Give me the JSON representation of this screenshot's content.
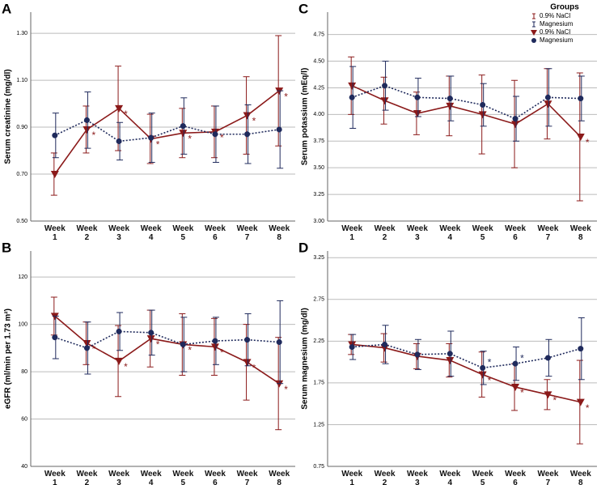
{
  "chart_data": [
    {
      "type": "line",
      "label": "A",
      "ylabel": "Serum creatinine (mg/dl)",
      "categories": [
        "Week 1",
        "Week 2",
        "Week 3",
        "Week 4",
        "Week 5",
        "Week 6",
        "Week 7",
        "Week 8"
      ],
      "ylim": [
        0.5,
        1.39
      ],
      "yticks": [
        {
          "value": 0.5,
          "label": "0.50"
        },
        {
          "value": 0.7,
          "label": "0.70"
        },
        {
          "value": 0.9,
          "label": "0.90"
        },
        {
          "value": 1.1,
          "label": "1.10"
        },
        {
          "value": 1.3,
          "label": "1.30"
        }
      ],
      "grid": true,
      "series": [
        {
          "name": "0.9% NaCl",
          "color": "#8b1a1a",
          "marker": "triangle",
          "linestyle": "solid",
          "values": [
            0.7,
            0.89,
            0.98,
            0.85,
            0.875,
            0.88,
            0.95,
            1.055
          ],
          "errors": [
            0.09,
            0.1,
            0.18,
            0.105,
            0.105,
            0.11,
            0.165,
            0.235
          ],
          "notes": [
            null,
            "*",
            "*",
            "*",
            "*",
            "*",
            "*",
            "*"
          ]
        },
        {
          "name": "Magnesium",
          "color": "#1f2a5c",
          "marker": "circle",
          "linestyle": "dotted",
          "values": [
            0.865,
            0.93,
            0.84,
            0.855,
            0.905,
            0.87,
            0.87,
            0.89
          ],
          "errors": [
            0.095,
            0.12,
            0.08,
            0.105,
            0.12,
            0.12,
            0.125,
            0.165
          ],
          "notes": [
            null,
            null,
            null,
            null,
            null,
            null,
            null,
            null
          ]
        }
      ]
    },
    {
      "type": "line",
      "label": "B",
      "ylabel": "eGFR (ml/min per 1.73 m²)",
      "categories": [
        "Week 1",
        "Week 2",
        "Week 3",
        "Week 4",
        "Week 5",
        "Week 6",
        "Week 7",
        "Week 8"
      ],
      "ylim": [
        40,
        131
      ],
      "yticks": [
        40,
        60,
        80,
        100,
        120
      ],
      "grid": true,
      "series": [
        {
          "name": "0.9% NaCl",
          "color": "#8b1a1a",
          "marker": "triangle",
          "linestyle": "solid",
          "values": [
            103.5,
            92,
            84.5,
            94,
            91.5,
            90.5,
            84,
            75
          ],
          "errors": [
            8,
            9,
            15,
            12,
            13,
            12,
            16,
            19.5
          ],
          "notes": [
            null,
            "*",
            "*",
            "*",
            "*",
            "*",
            "*",
            "*"
          ]
        },
        {
          "name": "Magnesium",
          "color": "#1f2a5c",
          "marker": "circle",
          "linestyle": "dotted",
          "values": [
            94.5,
            90,
            97,
            96.5,
            91.5,
            93,
            93.5,
            92.5
          ],
          "errors": [
            9,
            11,
            8,
            9.5,
            11.5,
            10,
            11,
            17.5
          ],
          "notes": [
            null,
            null,
            null,
            null,
            null,
            null,
            null,
            null
          ]
        }
      ]
    },
    {
      "type": "line",
      "label": "C",
      "ylabel": "Serum potassium (mEq/l)",
      "legend_title": "Groups",
      "legend": "upper right",
      "categories": [
        "Week 1",
        "Week 2",
        "Week 3",
        "Week 4",
        "Week 5",
        "Week 6",
        "Week 7",
        "Week 8"
      ],
      "ylim": [
        3.0,
        4.96
      ],
      "yticks": [
        {
          "value": 3.0,
          "label": "3.00"
        },
        {
          "value": 3.25,
          "label": "3.25"
        },
        {
          "value": 3.5,
          "label": "3.50"
        },
        {
          "value": 3.75,
          "label": "3.75"
        },
        {
          "value": 4.0,
          "label": "4.00"
        },
        {
          "value": 4.25,
          "label": "4.25"
        },
        {
          "value": 4.5,
          "label": "4.50"
        },
        {
          "value": 4.75,
          "label": "4.75"
        }
      ],
      "grid": true,
      "series": [
        {
          "name": "0.9% NaCl",
          "color": "#8b1a1a",
          "marker": "triangle",
          "linestyle": "solid",
          "values": [
            4.27,
            4.13,
            4.01,
            4.08,
            4.0,
            3.91,
            4.1,
            3.79
          ],
          "errors": [
            0.27,
            0.22,
            0.2,
            0.28,
            0.37,
            0.41,
            0.33,
            0.6
          ],
          "notes": [
            null,
            null,
            null,
            null,
            null,
            null,
            null,
            "*"
          ]
        },
        {
          "name": "Magnesium",
          "color": "#1f2a5c",
          "marker": "circle",
          "linestyle": "dotted",
          "values": [
            4.16,
            4.27,
            4.16,
            4.15,
            4.09,
            3.96,
            4.16,
            4.15
          ],
          "errors": [
            0.29,
            0.23,
            0.18,
            0.21,
            0.2,
            0.21,
            0.27,
            0.21
          ],
          "notes": [
            null,
            null,
            null,
            null,
            null,
            null,
            null,
            null
          ]
        }
      ]
    },
    {
      "type": "line",
      "label": "D",
      "ylabel": "Serum magnesium (mg/dl)",
      "categories": [
        "Week 1",
        "Week 2",
        "Week 3",
        "Week 4",
        "Week 5",
        "Week 6",
        "Week 7",
        "Week 8"
      ],
      "ylim": [
        0.75,
        3.33
      ],
      "yticks": [
        {
          "value": 0.75,
          "label": "0.75"
        },
        {
          "value": 1.25,
          "label": "1.25"
        },
        {
          "value": 1.75,
          "label": "1.75"
        },
        {
          "value": 2.25,
          "label": "2.25"
        },
        {
          "value": 2.75,
          "label": "2.75"
        },
        {
          "value": 3.25,
          "label": "3.25"
        }
      ],
      "grid": true,
      "series": [
        {
          "name": "0.9% NaCl",
          "color": "#8b1a1a",
          "marker": "triangle",
          "linestyle": "solid",
          "values": [
            2.21,
            2.17,
            2.07,
            2.02,
            1.85,
            1.7,
            1.61,
            1.52
          ],
          "errors": [
            0.12,
            0.17,
            0.15,
            0.2,
            0.27,
            0.28,
            0.18,
            0.5
          ],
          "notes": [
            null,
            null,
            null,
            null,
            "*",
            "*",
            "*",
            "*"
          ]
        },
        {
          "name": "Magnesium",
          "color": "#1f2a5c",
          "marker": "circle",
          "linestyle": "dotted",
          "values": [
            2.18,
            2.21,
            2.09,
            2.1,
            1.93,
            1.98,
            2.05,
            2.16
          ],
          "errors": [
            0.15,
            0.23,
            0.18,
            0.27,
            0.2,
            0.2,
            0.22,
            0.37
          ],
          "notes": [
            null,
            null,
            null,
            null,
            "*",
            "*",
            null,
            null
          ]
        }
      ]
    }
  ]
}
